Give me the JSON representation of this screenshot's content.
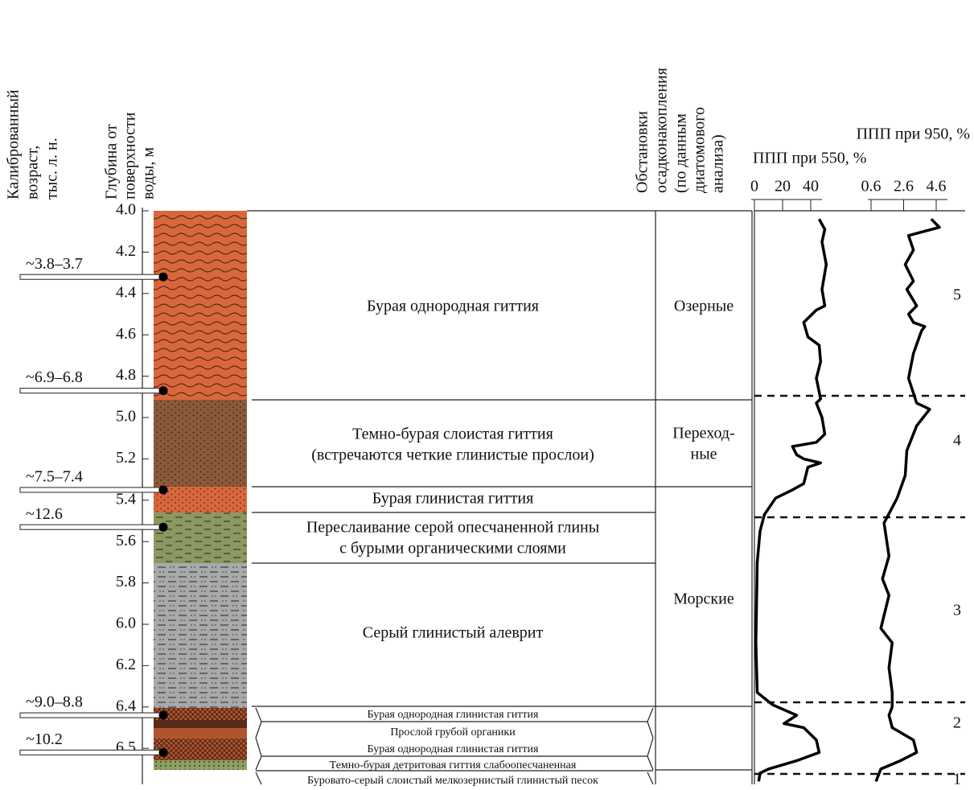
{
  "headers": {
    "age": [
      "Калиброванный",
      "возраст,",
      "тыс. л. н."
    ],
    "depth": [
      "Глубина от",
      "поверхности",
      "воды, м"
    ],
    "environment": [
      "Обстановки",
      "осадконакопления",
      "(по данным",
      "диатомового",
      "анализа)"
    ],
    "loi550": "ППП при 550, %",
    "loi950": "ППП при 950, %"
  },
  "depth_ticks": [
    {
      "value": 4.0,
      "label": "4.0"
    },
    {
      "value": 4.2,
      "label": "4.2"
    },
    {
      "value": 4.4,
      "label": "4.4"
    },
    {
      "value": 4.6,
      "label": "4.6"
    },
    {
      "value": 4.8,
      "label": "4.8"
    },
    {
      "value": 5.0,
      "label": "5.0"
    },
    {
      "value": 5.2,
      "label": "5.2"
    },
    {
      "value": 5.4,
      "label": "5.4"
    },
    {
      "value": 5.6,
      "label": "5.6"
    },
    {
      "value": 5.8,
      "label": "5.8"
    },
    {
      "value": 6.0,
      "label": "6.0"
    },
    {
      "value": 6.2,
      "label": "6.2"
    },
    {
      "value": 6.4,
      "label": "6.4"
    },
    {
      "value": 6.5,
      "label": "6.5"
    }
  ],
  "samples": [
    {
      "age": "~3.8–3.7",
      "depth": 4.32
    },
    {
      "age": "~6.9–6.8",
      "depth": 4.87
    },
    {
      "age": "~7.5–7.4",
      "depth": 5.35
    },
    {
      "age": "~12.6",
      "depth": 5.53
    },
    {
      "age": "~9.0–8.8",
      "depth": 6.42
    },
    {
      "age": "~10.2",
      "depth": 6.51
    }
  ],
  "descriptions": [
    [
      "Бурая однородная гиттия"
    ],
    [
      "Темно-бурая слоистая гиттия",
      "(встречаются четкие глинистые прослои)"
    ],
    [
      "Бурая глинистая гиттия"
    ],
    [
      "Переслаивание серой опесчаненной глины",
      "с бурыми органическими слоями"
    ],
    [
      "Серый глинистый алеврит"
    ]
  ],
  "small_descriptions": [
    "Бурая однородная глинистая гиттия",
    "Прослой грубой органики",
    "Бурая однородная глинистая гиттия",
    "Темно-бурая детритовая гиттия слабоопесчаненная",
    "Буровато-серый слоистый мелкозернистый глинистый песок"
  ],
  "environments": [
    [
      "Озерные"
    ],
    [
      "Переход-",
      "ные"
    ],
    [
      "Морские"
    ]
  ],
  "zones": [
    "5",
    "4",
    "3",
    "2",
    "1"
  ],
  "loi550": {
    "ticks": [
      0,
      20,
      40
    ],
    "depth": [
      4.04,
      4.09,
      4.15,
      4.26,
      4.38,
      4.46,
      4.48,
      4.54,
      4.61,
      4.65,
      4.73,
      4.81,
      4.91,
      4.93,
      5.0,
      5.08,
      5.12,
      5.14,
      5.18,
      5.2,
      5.22,
      5.24,
      5.32,
      5.35,
      5.39,
      5.47,
      5.55,
      5.7,
      6.09,
      6.33,
      6.39,
      6.42,
      6.44,
      6.45,
      6.48,
      6.51,
      6.53,
      6.55,
      6.56,
      6.58
    ],
    "values": [
      46,
      50,
      48,
      51,
      48,
      50,
      44,
      35,
      38,
      46,
      47,
      44,
      47,
      44,
      48,
      50,
      44,
      27,
      30,
      35,
      47,
      38,
      35,
      27,
      15,
      7,
      4,
      2,
      1,
      2,
      13,
      30,
      21,
      35,
      44,
      46,
      30,
      10,
      4,
      3
    ]
  },
  "loi950": {
    "ticks": [
      0.6,
      2.6,
      4.6
    ],
    "depth": [
      4.04,
      4.08,
      4.12,
      4.19,
      4.26,
      4.34,
      4.38,
      4.46,
      4.5,
      4.54,
      4.56,
      4.58,
      4.69,
      4.81,
      4.93,
      4.96,
      5.04,
      5.16,
      5.28,
      5.39,
      5.51,
      5.67,
      5.78,
      5.86,
      6.02,
      6.09,
      6.21,
      6.33,
      6.4,
      6.42,
      6.45,
      6.48,
      6.51,
      6.53,
      6.55,
      6.58
    ],
    "values": [
      4.3,
      4.8,
      2.9,
      3.2,
      2.7,
      3.2,
      2.8,
      3.4,
      2.9,
      3.2,
      3.9,
      3.7,
      3.2,
      2.9,
      3.4,
      4.2,
      3.4,
      2.8,
      2.7,
      2.2,
      1.4,
      1.7,
      1.3,
      1.7,
      1.2,
      1.9,
      1.7,
      1.9,
      1.9,
      1.7,
      1.9,
      3.2,
      3.4,
      2.4,
      1.2,
      0.9
    ]
  }
}
